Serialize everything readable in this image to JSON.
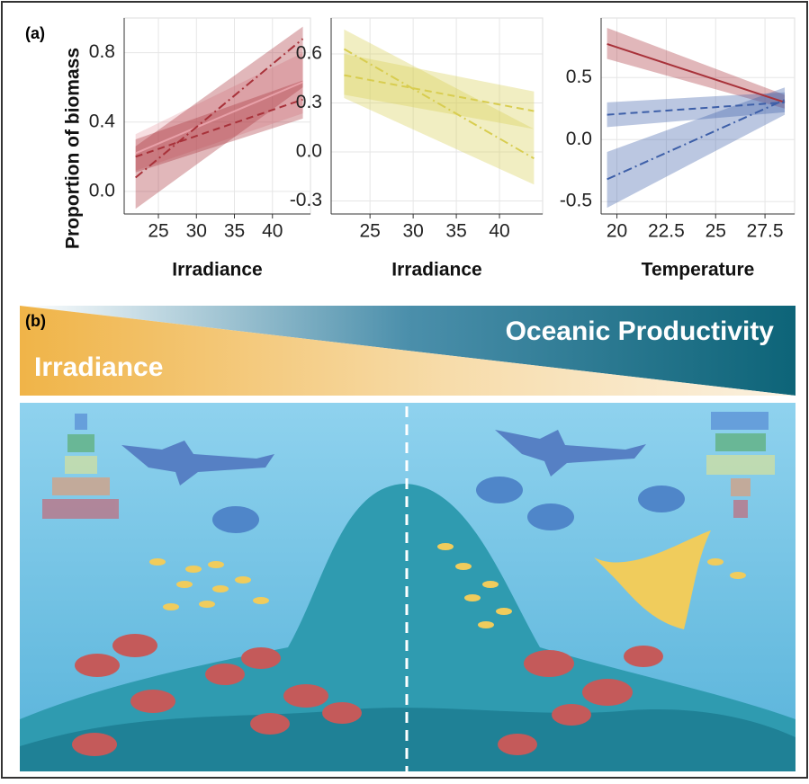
{
  "panel_labels": [
    "(a)",
    "(b)"
  ],
  "banner": {
    "top_text": "Oceanic Productivity",
    "bottom_text": "Irradiance"
  },
  "chart_data": [
    {
      "type": "line",
      "y_label": "Proportion of biomass",
      "x_label": "Irradiance",
      "grid": true,
      "x": [
        22,
        44
      ],
      "xlim": [
        20.5,
        45
      ],
      "ylim": [
        -0.13,
        1.0
      ],
      "xticks": [
        25,
        30,
        35,
        40
      ],
      "yticks": [
        {
          "value": 0,
          "label": "0.0"
        },
        0.4,
        0.8
      ],
      "series": [
        {
          "color": "#e8a0a8",
          "dash": "solid",
          "values": [
            0.22,
            0.63
          ],
          "lower": [
            0.12,
            0.45
          ],
          "upper": [
            0.33,
            0.8
          ]
        },
        {
          "color": "#a8323a",
          "dash": "dashed",
          "values": [
            0.2,
            0.53
          ],
          "lower": [
            0.11,
            0.42
          ],
          "upper": [
            0.3,
            0.64
          ]
        },
        {
          "color": "#a8323a",
          "dash": "dotdash",
          "values": [
            0.08,
            0.88
          ],
          "lower": [
            -0.1,
            0.6
          ],
          "upper": [
            0.26,
            0.95
          ]
        }
      ]
    },
    {
      "type": "line",
      "x_label": "Irradiance",
      "grid": true,
      "x": [
        22,
        44
      ],
      "xlim": [
        20.5,
        45
      ],
      "ylim": [
        -0.38,
        0.82
      ],
      "xticks": [
        25,
        30,
        35,
        40
      ],
      "yticks": [
        -0.3,
        {
          "value": 0,
          "label": "0.0"
        },
        0.3,
        0.6
      ],
      "series": [
        {
          "color": "#d8cd50",
          "dash": "dashed",
          "values": [
            0.47,
            0.25
          ],
          "lower": [
            0.35,
            0.14
          ],
          "upper": [
            0.6,
            0.37
          ]
        },
        {
          "color": "#d8cd50",
          "dash": "dotdash",
          "values": [
            0.63,
            -0.04
          ],
          "lower": [
            0.33,
            -0.2
          ],
          "upper": [
            0.75,
            0.14
          ]
        }
      ]
    },
    {
      "type": "line",
      "x_label": "Temperature",
      "grid": true,
      "x": [
        19.5,
        28.5
      ],
      "xlim": [
        19.2,
        29
      ],
      "ylim": [
        -0.6,
        0.98
      ],
      "xticks": [
        20,
        22.5,
        25,
        27.5
      ],
      "yticks": [
        -0.5,
        {
          "value": 0,
          "label": "0.0"
        },
        0.5
      ],
      "series": [
        {
          "color": "#a8323a",
          "dash": "solid",
          "values": [
            0.77,
            0.3
          ],
          "lower": [
            0.65,
            0.25
          ],
          "upper": [
            0.9,
            0.36
          ]
        },
        {
          "color": "#3d5fa8",
          "dash": "dashed",
          "values": [
            0.2,
            0.3
          ],
          "lower": [
            0.1,
            0.22
          ],
          "upper": [
            0.3,
            0.38
          ]
        },
        {
          "color": "#3d5fa8",
          "dash": "dotdash",
          "values": [
            -0.32,
            0.32
          ],
          "lower": [
            -0.55,
            0.2
          ],
          "upper": [
            -0.1,
            0.42
          ]
        }
      ]
    }
  ]
}
